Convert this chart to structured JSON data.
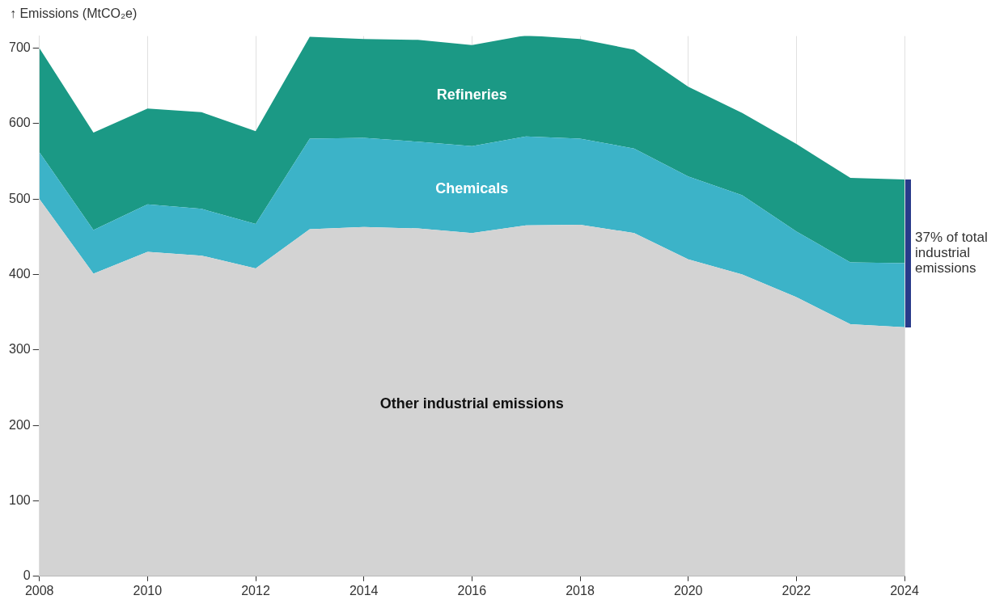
{
  "chart_data": {
    "type": "area",
    "stacked": true,
    "ylabel": "↑ Emissions (MtCO₂e)",
    "x": [
      2008,
      2009,
      2010,
      2011,
      2012,
      2013,
      2014,
      2015,
      2016,
      2017,
      2018,
      2019,
      2020,
      2021,
      2022,
      2023,
      2024
    ],
    "series": [
      {
        "name": "Other industrial emissions",
        "color": "#d3d3d3",
        "values": [
          500,
          401,
          430,
          425,
          408,
          460,
          463,
          461,
          455,
          465,
          466,
          455,
          420,
          400,
          370,
          334,
          330
        ]
      },
      {
        "name": "Chemicals",
        "color": "#3cb3c8",
        "values": [
          62,
          58,
          63,
          62,
          59,
          120,
          118,
          115,
          115,
          118,
          114,
          112,
          110,
          105,
          87,
          82,
          85
        ]
      },
      {
        "name": "Refineries",
        "color": "#1b9985",
        "values": [
          138,
          129,
          127,
          128,
          123,
          135,
          131,
          135,
          134,
          134,
          132,
          131,
          119,
          109,
          116,
          112,
          111
        ]
      }
    ],
    "xlim": [
      2008,
      2024
    ],
    "xticks": [
      2008,
      2010,
      2012,
      2014,
      2016,
      2018,
      2020,
      2022,
      2024
    ],
    "ylim": [
      0,
      716
    ],
    "yticks": [
      0,
      100,
      200,
      300,
      400,
      500,
      600,
      700
    ],
    "grid": "x",
    "legend": false,
    "annotations": [
      {
        "text": "37% of total industrial emissions",
        "x": 2024,
        "y": 428
      }
    ]
  }
}
